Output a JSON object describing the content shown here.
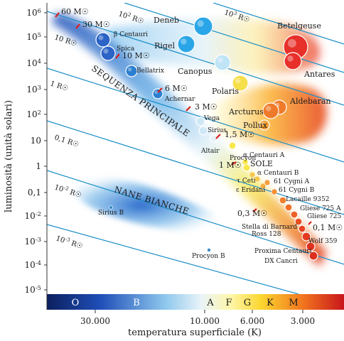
{
  "axes": {
    "ylabel": "luminosità (unità solari)",
    "xlabel": "temperatura superficiale (K)",
    "y_ticks": [
      "10^6",
      "10^5",
      "10^4",
      "10^3",
      "10^2",
      "10",
      "1",
      "0,1",
      "10^-2",
      "10^-3",
      "10^-4",
      "10^-5"
    ],
    "x_ticks": [
      "30.000",
      "10.000",
      "6.000",
      "3.000"
    ]
  },
  "spectral_classes": [
    "O",
    "B",
    "A",
    "F",
    "G",
    "K",
    "M"
  ],
  "regions": {
    "main_sequence": "SEQUENZA PRINCIPALE",
    "white_dwarfs": "NANE BIANCHE"
  },
  "radius_lines": [
    "10^2 R☉",
    "10^3 R☉",
    "10 R☉",
    "1 R☉",
    "0,1 R☉",
    "10^-2 R☉",
    "10^-3 R☉"
  ],
  "mass_labels": [
    "60 M☉",
    "30 M☉",
    "10 M☉",
    "6 M☉",
    "3 M☉",
    "1,5 M☉",
    "1 M☉",
    "0,3 M☉",
    "0,1 M☉"
  ],
  "stars": [
    {
      "name": "Deneb",
      "color": "#2aa6e8"
    },
    {
      "name": "Rigel",
      "color": "#2aa6e8"
    },
    {
      "name": "Canopus",
      "color": "#bfe4f6"
    },
    {
      "name": "Betelgeuse",
      "color": "#e8302a"
    },
    {
      "name": "Antares",
      "color": "#e8302a"
    },
    {
      "name": "Polaris",
      "color": "#f5df4a"
    },
    {
      "name": "Aldebaran",
      "color": "#ef7a2a"
    },
    {
      "name": "Arcturus",
      "color": "#ef7a2a"
    },
    {
      "name": "Pollux",
      "color": "#f5a033"
    },
    {
      "name": "β Centauri",
      "color": "#2b63c6"
    },
    {
      "name": "Spica",
      "color": "#2b63c6"
    },
    {
      "name": "Bellatrix",
      "color": "#2b7fd0"
    },
    {
      "name": "Achernar",
      "color": "#2b7fd0"
    },
    {
      "name": "Vega",
      "color": "#cfe8f6"
    },
    {
      "name": "Sirius",
      "color": "#cfe8f6"
    },
    {
      "name": "Altair",
      "color": "#e8f2f6"
    },
    {
      "name": "Procyon",
      "color": "#f8e84a"
    },
    {
      "name": "SOLE",
      "color": "#f8e84a"
    },
    {
      "name": "α Centauri A",
      "color": "#f8e84a"
    },
    {
      "name": "α Centauri B",
      "color": "#f5c84a"
    },
    {
      "name": "τ Ceti",
      "color": "#f5c84a"
    },
    {
      "name": "ε Eridani",
      "color": "#f5b040"
    },
    {
      "name": "61 Cygni A",
      "color": "#f5a040"
    },
    {
      "name": "61 Cygni B",
      "color": "#f5903a"
    },
    {
      "name": "Lacaille 9352",
      "color": "#f0802e"
    },
    {
      "name": "Gliese 725 A",
      "color": "#ef7028"
    },
    {
      "name": "Gliese 725 B",
      "color": "#ec6024"
    },
    {
      "name": "Stella di Barnard",
      "color": "#e84e22"
    },
    {
      "name": "Ross 128",
      "color": "#e84422"
    },
    {
      "name": "Wolf 359",
      "color": "#e43a20"
    },
    {
      "name": "Proxima Centauri",
      "color": "#e03220"
    },
    {
      "name": "DX Cancri",
      "color": "#dc2e1e"
    },
    {
      "name": "Sirius B",
      "color": "#3a8ac8"
    },
    {
      "name": "Procyon B",
      "color": "#3a8ac8"
    }
  ]
}
